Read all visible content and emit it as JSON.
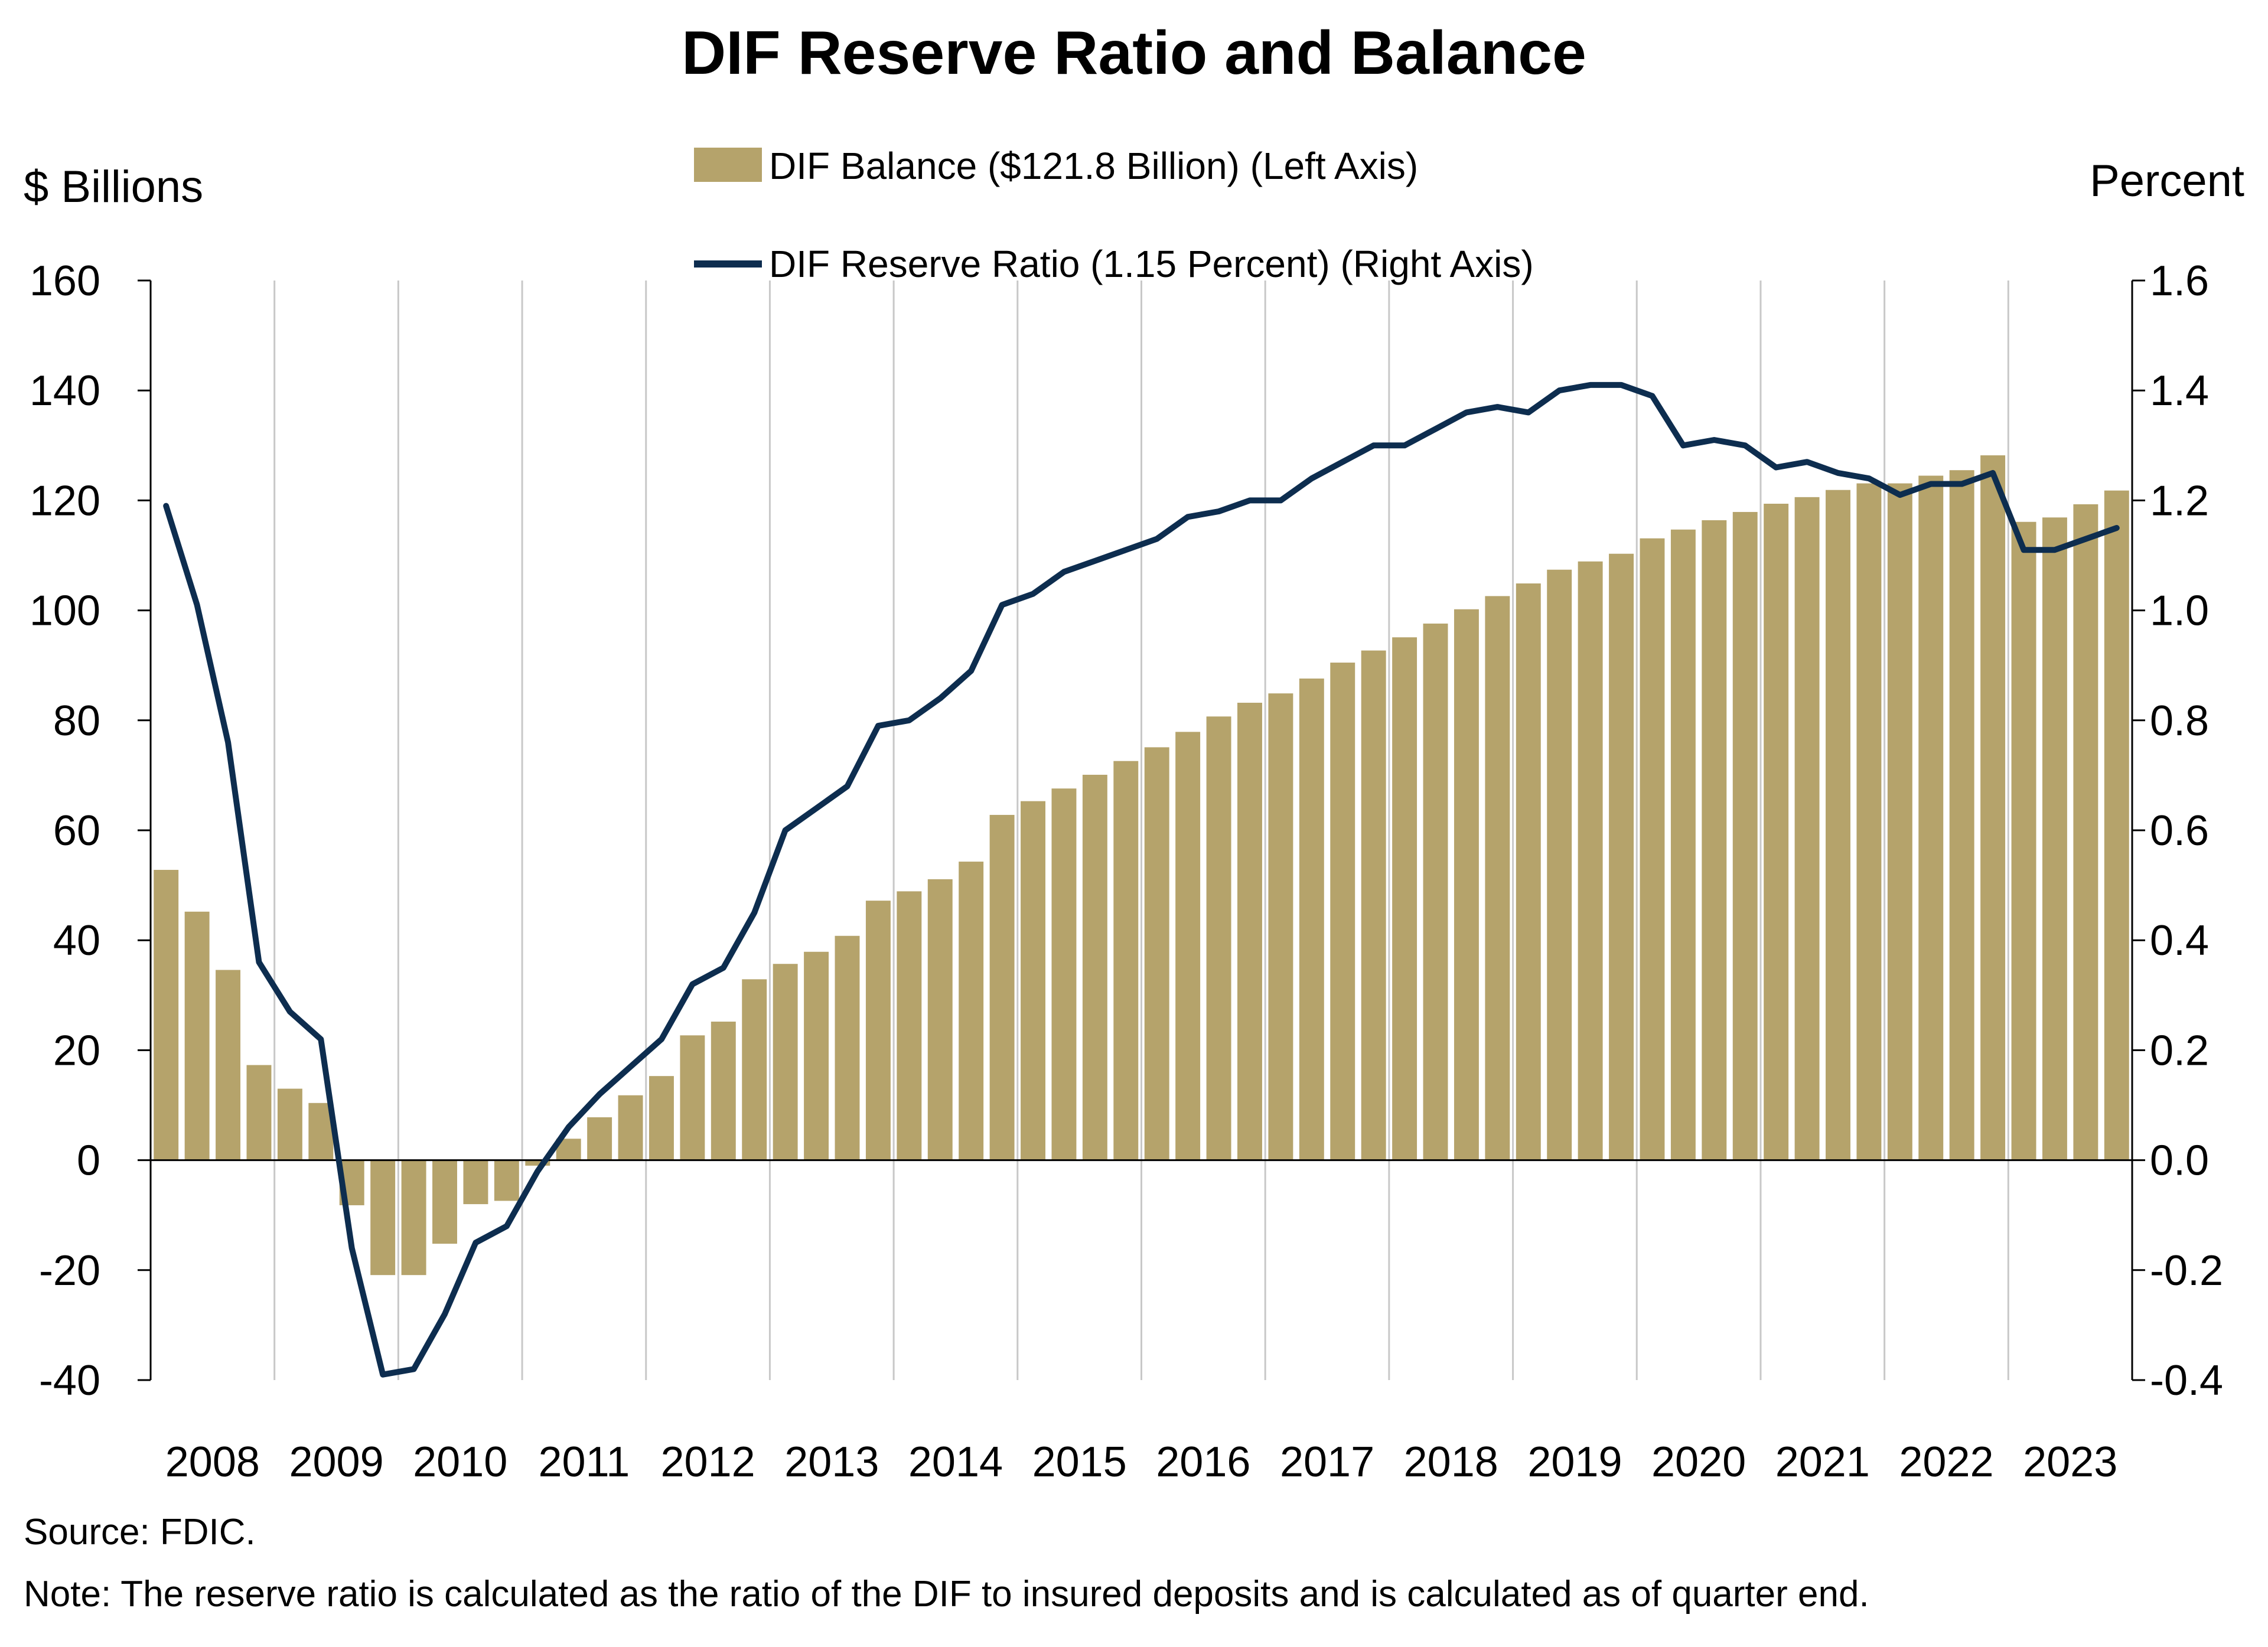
{
  "chart_data": {
    "type": "bar+line",
    "title": "DIF Reserve Ratio and Balance",
    "left_axis_label": "$ Billions",
    "right_axis_label": "Percent",
    "left_ylim": [
      -40,
      160
    ],
    "left_ticks": [
      "160",
      "140",
      "120",
      "100",
      "80",
      "60",
      "40",
      "20",
      "0",
      "-20",
      "-40"
    ],
    "right_ylim": [
      -0.4,
      1.6
    ],
    "right_ticks": [
      "1.6",
      "1.4",
      "1.2",
      "1.0",
      "0.8",
      "0.6",
      "0.4",
      "0.2",
      "0.0",
      "-0.2",
      "-0.4"
    ],
    "years": [
      "2008",
      "2009",
      "2010",
      "2011",
      "2012",
      "2013",
      "2014",
      "2015",
      "2016",
      "2017",
      "2018",
      "2019",
      "2020",
      "2021",
      "2022",
      "2023"
    ],
    "grid": "vertical lines at year boundaries",
    "legend_position": "top-center",
    "series": [
      {
        "name": "DIF Balance ($121.8 Billion) (Left Axis)",
        "type": "bar",
        "axis": "left",
        "color": "#b5a36b",
        "values": [
          52.8,
          45.2,
          34.6,
          17.3,
          13.0,
          10.4,
          -8.2,
          -20.9,
          -20.9,
          -15.2,
          -8.0,
          -7.4,
          -1.0,
          3.9,
          7.8,
          11.8,
          15.3,
          22.7,
          25.2,
          32.9,
          35.7,
          37.9,
          40.8,
          47.2,
          48.9,
          51.1,
          54.3,
          62.8,
          65.3,
          67.6,
          70.1,
          72.6,
          75.1,
          77.9,
          80.7,
          83.2,
          84.9,
          87.6,
          90.5,
          92.7,
          95.1,
          97.6,
          100.2,
          102.6,
          104.9,
          107.4,
          108.9,
          110.3,
          113.1,
          114.7,
          116.4,
          117.9,
          119.4,
          120.6,
          121.9,
          123.1,
          123.1,
          124.5,
          125.5,
          128.2,
          116.1,
          116.9,
          119.3,
          121.8
        ]
      },
      {
        "name": "DIF Reserve Ratio (1.15 Percent) (Right Axis)",
        "type": "line",
        "axis": "right",
        "color": "#0d2d4f",
        "values": [
          1.19,
          1.01,
          0.76,
          0.36,
          0.27,
          0.22,
          -0.16,
          -0.39,
          -0.38,
          -0.28,
          -0.15,
          -0.12,
          -0.02,
          0.06,
          0.12,
          0.17,
          0.22,
          0.32,
          0.35,
          0.45,
          0.6,
          0.64,
          0.68,
          0.79,
          0.8,
          0.84,
          0.89,
          1.01,
          1.03,
          1.07,
          1.09,
          1.11,
          1.13,
          1.17,
          1.18,
          1.2,
          1.2,
          1.24,
          1.27,
          1.3,
          1.3,
          1.33,
          1.36,
          1.37,
          1.36,
          1.4,
          1.41,
          1.41,
          1.39,
          1.3,
          1.31,
          1.3,
          1.26,
          1.27,
          1.25,
          1.24,
          1.21,
          1.23,
          1.23,
          1.25,
          1.11,
          1.11,
          1.13,
          1.15
        ]
      }
    ]
  },
  "source": "Source: FDIC.",
  "note": "Note: The reserve ratio is calculated as the ratio of the DIF to insured deposits and is calculated as of quarter end."
}
